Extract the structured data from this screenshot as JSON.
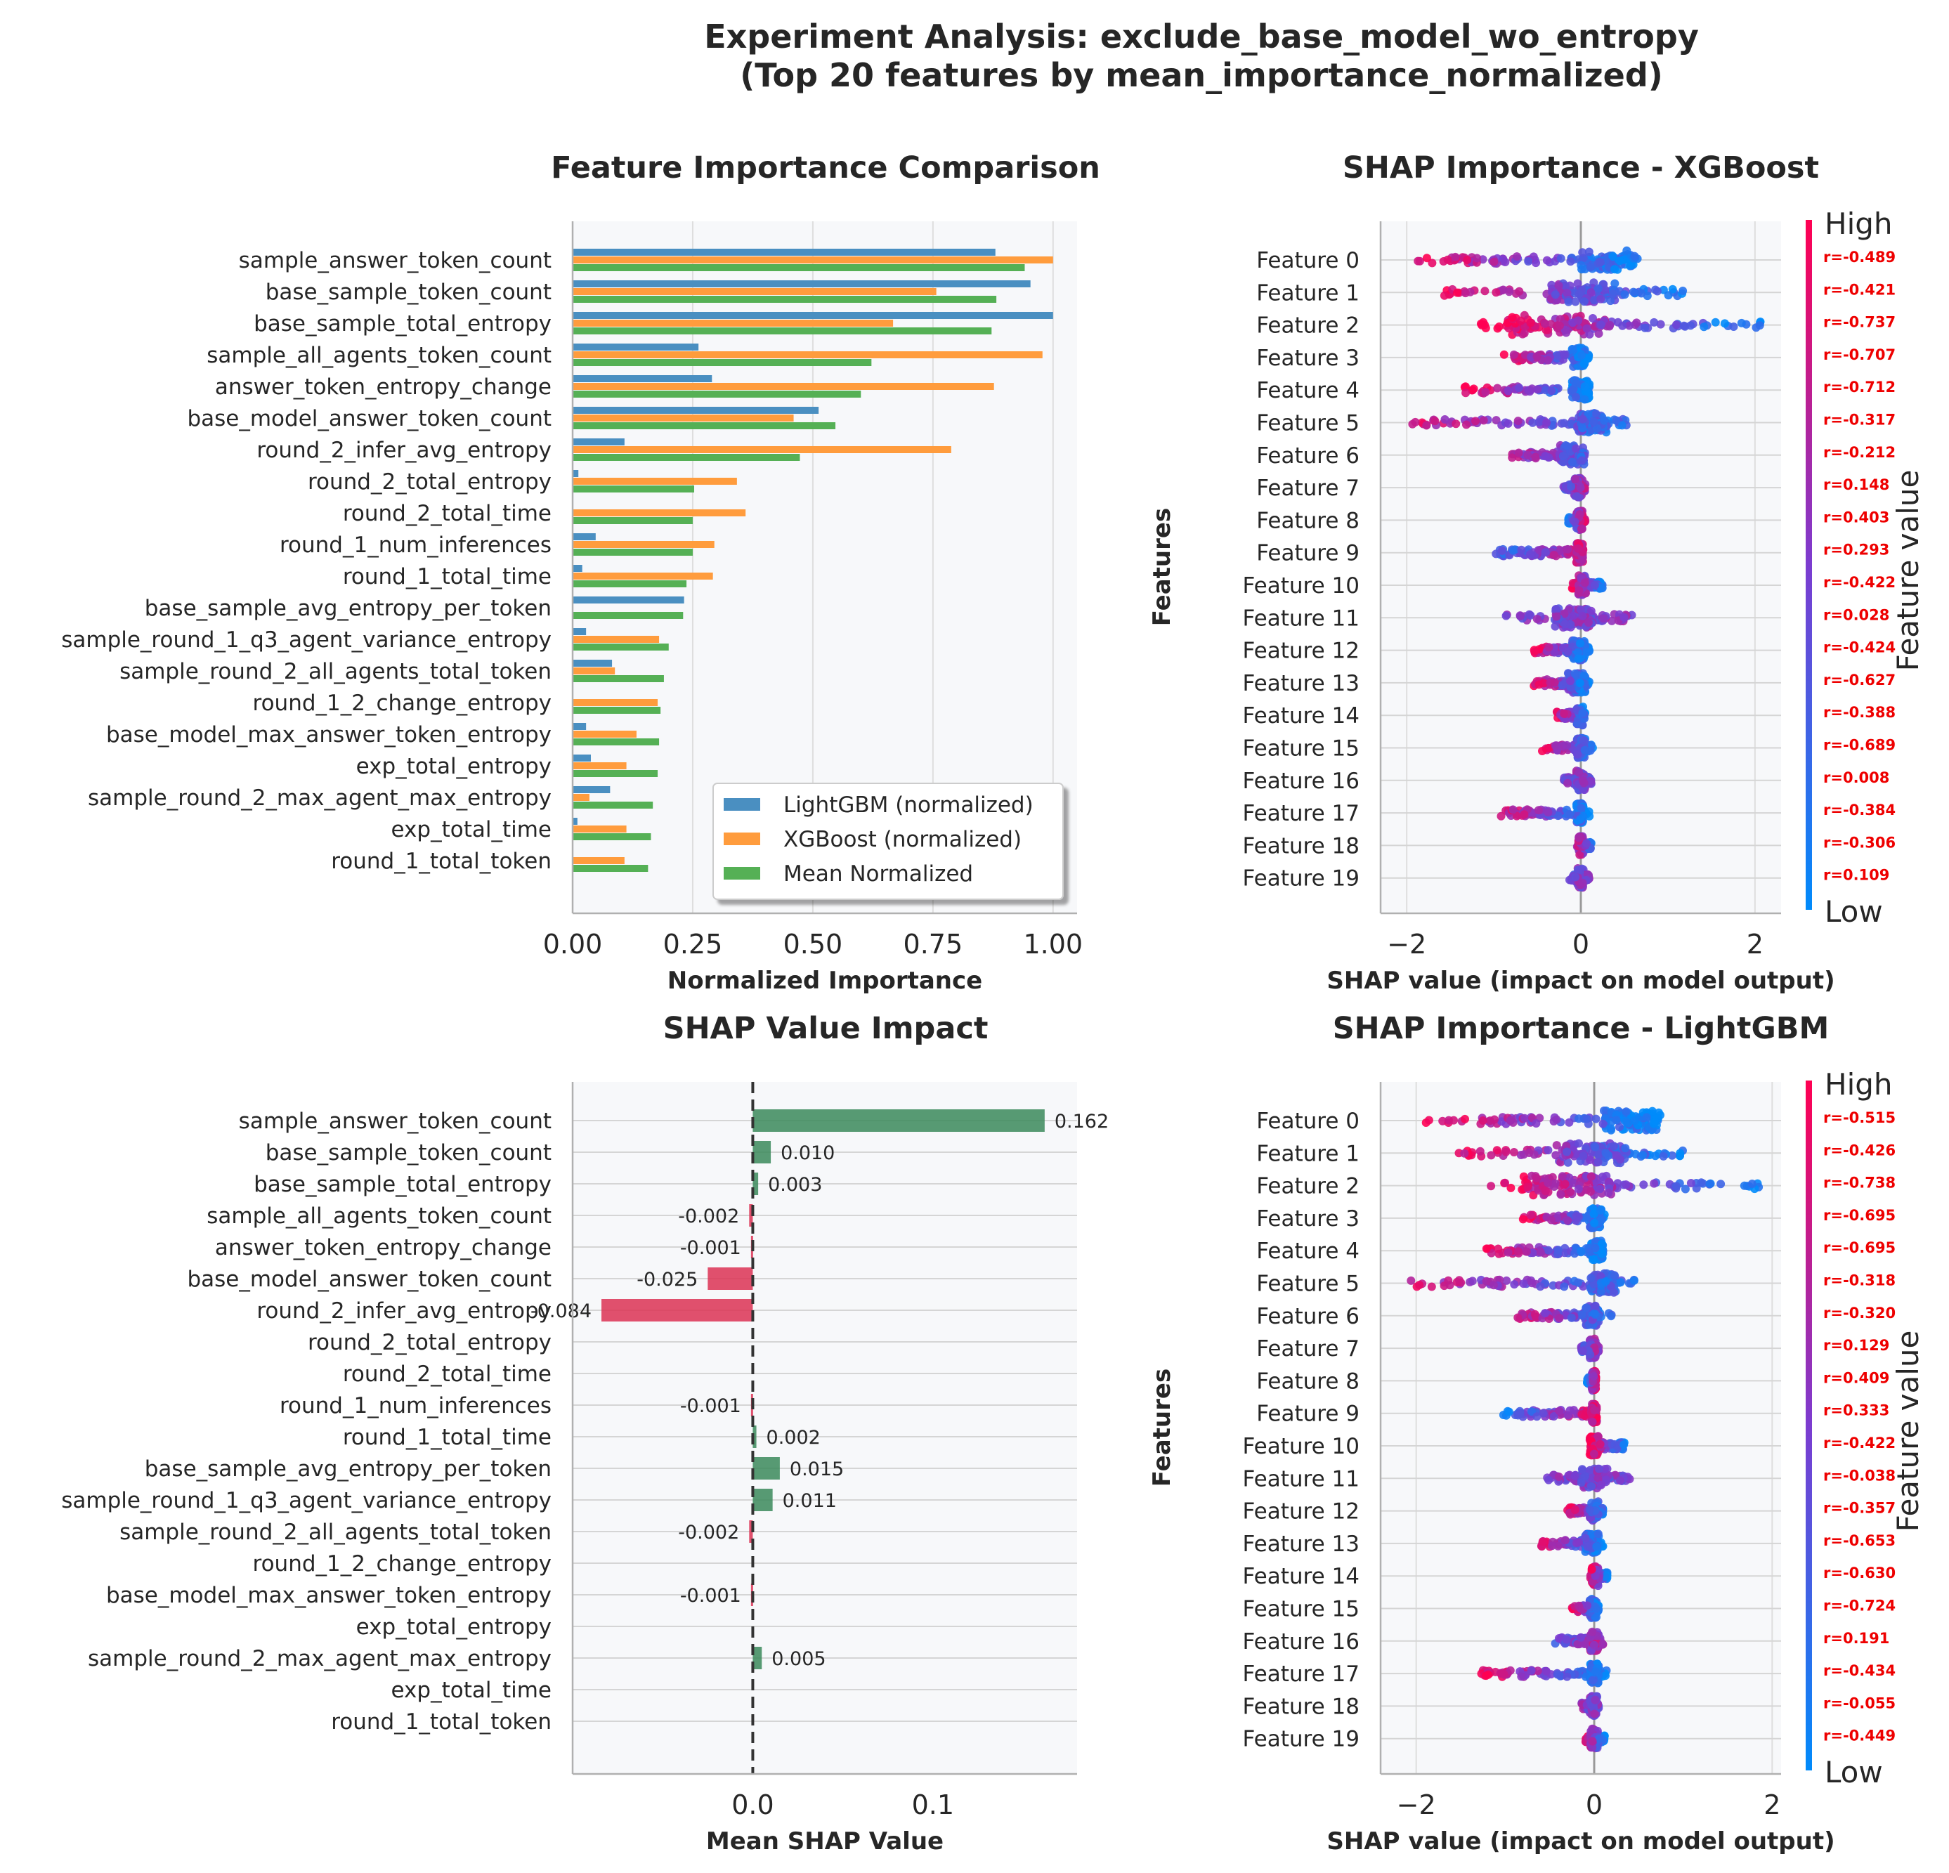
{
  "figure": {
    "title_line1": "Experiment Analysis: exclude_base_model_wo_entropy",
    "title_line2": "(Top 20 features by mean_importance_normalized)"
  },
  "colors": {
    "lightgbm": "#4a8fc1",
    "xgboost": "#ff9c3d",
    "mean": "#55b055",
    "positive": "#3b8a5a",
    "negative": "#dc3253",
    "low": "#008bfb",
    "high": "#ff0052",
    "r_text": "#ee0000",
    "panel_bg": "#f7f8fa",
    "grid": "#dedede"
  },
  "chart_data": [
    {
      "id": "importance",
      "type": "bar",
      "orientation": "horizontal",
      "title": "Feature Importance Comparison",
      "xlabel": "Normalized Importance",
      "ylabel": "",
      "xlim": [
        0,
        1.05
      ],
      "xticks": [
        "0.00",
        "0.25",
        "0.50",
        "0.75",
        "1.00"
      ],
      "xtick_values": [
        0,
        0.25,
        0.5,
        0.75,
        1.0
      ],
      "legend_position": "lower-right",
      "categories": [
        "sample_answer_token_count",
        "base_sample_token_count",
        "base_sample_total_entropy",
        "sample_all_agents_token_count",
        "answer_token_entropy_change",
        "base_model_answer_token_count",
        "round_2_infer_avg_entropy",
        "round_2_total_entropy",
        "round_2_total_time",
        "round_1_num_inferences",
        "round_1_total_time",
        "base_sample_avg_entropy_per_token",
        "sample_round_1_q3_agent_variance_entropy",
        "sample_round_2_all_agents_total_token",
        "round_1_2_change_entropy",
        "base_model_max_answer_token_entropy",
        "exp_total_entropy",
        "sample_round_2_max_agent_max_entropy",
        "exp_total_time",
        "round_1_total_token"
      ],
      "series": [
        {
          "name": "LightGBM (normalized)",
          "values": [
            0.88,
            0.953,
            1.0,
            0.262,
            0.29,
            0.512,
            0.108,
            0.012,
            0.0,
            0.048,
            0.02,
            0.232,
            0.028,
            0.082,
            0.0,
            0.028,
            0.038,
            0.078,
            0.01,
            0.0
          ]
        },
        {
          "name": "XGBoost (normalized)",
          "values": [
            1.0,
            0.757,
            0.667,
            0.978,
            0.877,
            0.46,
            0.788,
            0.342,
            0.36,
            0.295,
            0.292,
            0.0,
            0.18,
            0.088,
            0.177,
            0.133,
            0.112,
            0.035,
            0.112,
            0.108
          ]
        },
        {
          "name": "Mean Normalized",
          "values": [
            0.941,
            0.882,
            0.872,
            0.622,
            0.6,
            0.547,
            0.473,
            0.253,
            0.25,
            0.25,
            0.237,
            0.23,
            0.2,
            0.19,
            0.183,
            0.18,
            0.177,
            0.167,
            0.163,
            0.157
          ]
        }
      ]
    },
    {
      "id": "shap_xgb",
      "type": "scatter",
      "subtype": "beeswarm",
      "title": "SHAP Importance - XGBoost",
      "xlabel": "SHAP value (impact on model output)",
      "ylabel": "Features",
      "xlim": [
        -2.3,
        2.3
      ],
      "xticks": [
        "−2",
        "0",
        "2"
      ],
      "xtick_values": [
        -2,
        0,
        2
      ],
      "colorbar": {
        "high": "High",
        "low": "Low",
        "label": "Feature value"
      },
      "features": [
        "Feature 0",
        "Feature 1",
        "Feature 2",
        "Feature 3",
        "Feature 4",
        "Feature 5",
        "Feature 6",
        "Feature 7",
        "Feature 8",
        "Feature 9",
        "Feature 10",
        "Feature 11",
        "Feature 12",
        "Feature 13",
        "Feature 14",
        "Feature 15",
        "Feature 16",
        "Feature 17",
        "Feature 18",
        "Feature 19"
      ],
      "r_labels": [
        "r=-0.489",
        "r=-0.421",
        "r=-0.737",
        "r=-0.707",
        "r=-0.712",
        "r=-0.317",
        "r=-0.212",
        "r=0.148",
        "r=0.403",
        "r=0.293",
        "r=-0.422",
        "r=0.028",
        "r=-0.424",
        "r=-0.627",
        "r=-0.388",
        "r=-0.689",
        "r=0.008",
        "r=-0.384",
        "r=-0.306",
        "r=0.109"
      ],
      "r": [
        -0.489,
        -0.421,
        -0.737,
        -0.707,
        -0.712,
        -0.317,
        -0.212,
        0.148,
        0.403,
        0.293,
        -0.422,
        0.028,
        -0.424,
        -0.627,
        -0.388,
        -0.689,
        0.008,
        -0.384,
        -0.306,
        0.109
      ],
      "ranges": [
        [
          -1.9,
          0.7
        ],
        [
          -1.65,
          1.2
        ],
        [
          -1.2,
          2.1
        ],
        [
          -0.9,
          0.1
        ],
        [
          -1.35,
          0.12
        ],
        [
          -1.95,
          0.6
        ],
        [
          -0.8,
          0.05
        ],
        [
          -0.2,
          0.05
        ],
        [
          -0.15,
          0.05
        ],
        [
          -1.0,
          0.05
        ],
        [
          -0.1,
          0.25
        ],
        [
          -0.9,
          0.6
        ],
        [
          -0.55,
          0.1
        ],
        [
          -0.55,
          0.1
        ],
        [
          -0.3,
          0.05
        ],
        [
          -0.45,
          0.15
        ],
        [
          -0.2,
          0.12
        ],
        [
          -0.95,
          0.1
        ],
        [
          -0.05,
          0.12
        ],
        [
          -0.15,
          0.1
        ]
      ],
      "cores": [
        [
          0,
          0.65
        ],
        [
          -0.35,
          0.4
        ],
        [
          -0.85,
          0.3
        ],
        [
          -0.1,
          0.05
        ],
        [
          -0.1,
          0.1
        ],
        [
          -0.05,
          0.3
        ],
        [
          -0.25,
          0.05
        ],
        [
          -0.08,
          0.02
        ],
        [
          -0.05,
          0.02
        ],
        [
          -0.05,
          0.03
        ],
        [
          -0.03,
          0.06
        ],
        [
          -0.3,
          0.15
        ],
        [
          -0.1,
          0.05
        ],
        [
          -0.15,
          0.05
        ],
        [
          -0.05,
          0.03
        ],
        [
          -0.05,
          0.05
        ],
        [
          -0.05,
          0.05
        ],
        [
          -0.05,
          0.03
        ],
        [
          -0.03,
          0.03
        ],
        [
          -0.04,
          0.03
        ]
      ]
    },
    {
      "id": "shap_impact",
      "type": "bar",
      "orientation": "horizontal",
      "title": "SHAP Value Impact",
      "xlabel": "Mean SHAP Value",
      "ylabel": "",
      "xlim": [
        -0.1,
        0.18
      ],
      "xticks": [
        "0.0",
        "0.1"
      ],
      "xtick_values": [
        0,
        0.1
      ],
      "categories": [
        "sample_answer_token_count",
        "base_sample_token_count",
        "base_sample_total_entropy",
        "sample_all_agents_token_count",
        "answer_token_entropy_change",
        "base_model_answer_token_count",
        "round_2_infer_avg_entropy",
        "round_2_total_entropy",
        "round_2_total_time",
        "round_1_num_inferences",
        "round_1_total_time",
        "base_sample_avg_entropy_per_token",
        "sample_round_1_q3_agent_variance_entropy",
        "sample_round_2_all_agents_total_token",
        "round_1_2_change_entropy",
        "base_model_max_answer_token_entropy",
        "exp_total_entropy",
        "sample_round_2_max_agent_max_entropy",
        "exp_total_time",
        "round_1_total_token"
      ],
      "values": [
        0.162,
        0.01,
        0.003,
        -0.002,
        -0.001,
        -0.025,
        -0.084,
        0,
        0,
        -0.001,
        0.002,
        0.015,
        0.011,
        -0.002,
        0,
        -0.001,
        0,
        0.005,
        0,
        0
      ],
      "value_labels": [
        "0.162",
        "0.010",
        "0.003",
        "-0.002",
        "-0.001",
        "-0.025",
        "-0.084",
        "",
        "",
        "-0.001",
        "0.002",
        "0.015",
        "0.011",
        "-0.002",
        "",
        "-0.001",
        "",
        "0.005",
        "",
        ""
      ]
    },
    {
      "id": "shap_lgbm",
      "type": "scatter",
      "subtype": "beeswarm",
      "title": "SHAP Importance - LightGBM",
      "xlabel": "SHAP value (impact on model output)",
      "ylabel": "Features",
      "xlim": [
        -2.4,
        2.1
      ],
      "xticks": [
        "−2",
        "0",
        "2"
      ],
      "xtick_values": [
        -2,
        0,
        2
      ],
      "colorbar": {
        "high": "High",
        "low": "Low",
        "label": "Feature value"
      },
      "features": [
        "Feature 0",
        "Feature 1",
        "Feature 2",
        "Feature 3",
        "Feature 4",
        "Feature 5",
        "Feature 6",
        "Feature 7",
        "Feature 8",
        "Feature 9",
        "Feature 10",
        "Feature 11",
        "Feature 12",
        "Feature 13",
        "Feature 14",
        "Feature 15",
        "Feature 16",
        "Feature 17",
        "Feature 18",
        "Feature 19"
      ],
      "r_labels": [
        "r=-0.515",
        "r=-0.426",
        "r=-0.738",
        "r=-0.695",
        "r=-0.695",
        "r=-0.318",
        "r=-0.320",
        "r=0.129",
        "r=0.409",
        "r=0.333",
        "r=-0.422",
        "r=-0.038",
        "r=-0.357",
        "r=-0.653",
        "r=-0.630",
        "r=-0.724",
        "r=0.191",
        "r=-0.434",
        "r=-0.055",
        "r=-0.449"
      ],
      "r": [
        -0.515,
        -0.426,
        -0.738,
        -0.695,
        -0.695,
        -0.318,
        -0.32,
        0.129,
        0.409,
        0.333,
        -0.422,
        -0.038,
        -0.357,
        -0.653,
        -0.63,
        -0.724,
        0.191,
        -0.434,
        -0.055,
        -0.449
      ],
      "ranges": [
        [
          -2.0,
          0.75
        ],
        [
          -1.7,
          1.05
        ],
        [
          -1.2,
          1.95
        ],
        [
          -0.8,
          0.12
        ],
        [
          -1.25,
          0.12
        ],
        [
          -2.15,
          0.45
        ],
        [
          -0.9,
          0.2
        ],
        [
          -0.15,
          0.05
        ],
        [
          -0.08,
          0.02
        ],
        [
          -1.05,
          0.05
        ],
        [
          -0.05,
          0.35
        ],
        [
          -0.55,
          0.4
        ],
        [
          -0.3,
          0.1
        ],
        [
          -0.65,
          0.1
        ],
        [
          -0.05,
          0.15
        ],
        [
          -0.25,
          0.05
        ],
        [
          -0.45,
          0.1
        ],
        [
          -1.3,
          0.15
        ],
        [
          -0.15,
          0.05
        ],
        [
          -0.1,
          0.12
        ]
      ],
      "cores": [
        [
          0.1,
          0.75
        ],
        [
          -0.45,
          0.35
        ],
        [
          -0.85,
          0.2
        ],
        [
          -0.05,
          0.08
        ],
        [
          -0.05,
          0.1
        ],
        [
          -0.05,
          0.25
        ],
        [
          -0.1,
          0.05
        ],
        [
          -0.05,
          0.02
        ],
        [
          -0.03,
          0.02
        ],
        [
          -0.03,
          0.03
        ],
        [
          -0.05,
          0.05
        ],
        [
          -0.15,
          0.15
        ],
        [
          -0.05,
          0.05
        ],
        [
          -0.1,
          0.05
        ],
        [
          -0.03,
          0.05
        ],
        [
          -0.05,
          0.03
        ],
        [
          -0.05,
          0.05
        ],
        [
          -0.05,
          0.05
        ],
        [
          -0.05,
          0.03
        ],
        [
          -0.04,
          0.05
        ]
      ]
    }
  ]
}
